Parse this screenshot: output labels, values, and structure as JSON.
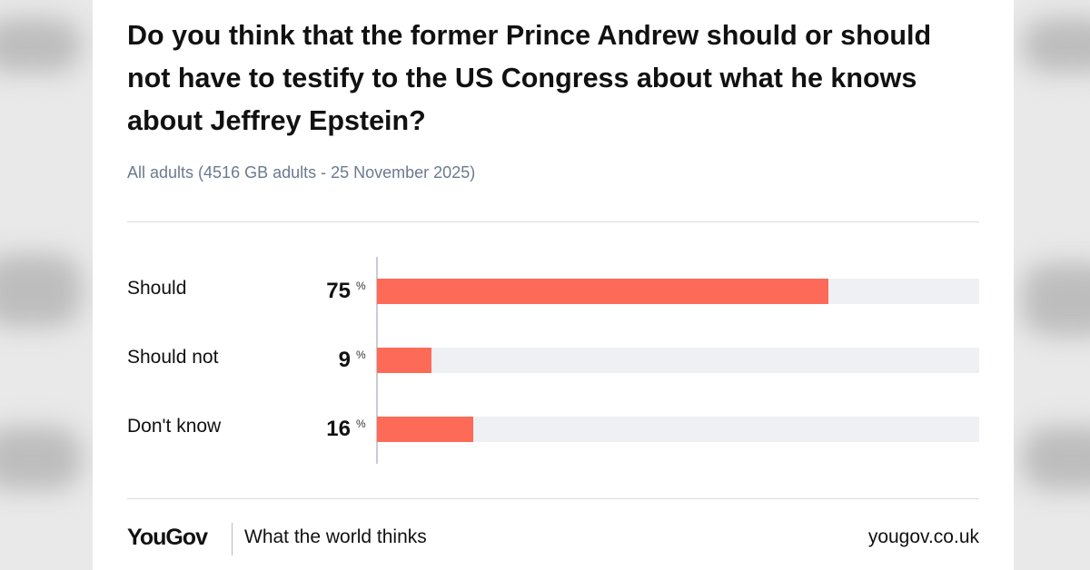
{
  "chart_data": {
    "type": "bar",
    "title": "Do you think that the former Prince Andrew should or should not have to testify to the US Congress about what he knows about Jeffrey Epstein?",
    "subtitle": "All adults (4516 GB adults - 25 November 2025)",
    "categories": [
      "Should",
      "Should not",
      "Don't know"
    ],
    "values": [
      75,
      9,
      16
    ],
    "unit": "%",
    "color": "#fd6a58",
    "xlim": [
      0,
      100
    ]
  },
  "footer": {
    "brand": "YouGov",
    "tagline": "What the world thinks",
    "url": "yougov.co.uk"
  }
}
